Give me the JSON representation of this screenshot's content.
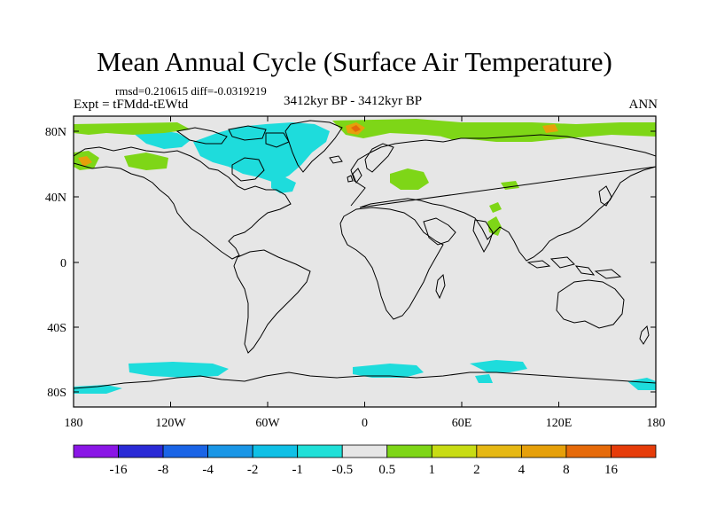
{
  "title": "Mean Annual Cycle (Surface Air Temperature)",
  "stats": {
    "rmsd_label": "rmsd=",
    "rmsd": "0.210615",
    "diff_label": "diff=",
    "diff": "-0.0319219"
  },
  "experiment": "Expt = tFMdd-tEWtd",
  "period": "3412kyr BP - 3412kyr BP",
  "season": "ANN",
  "lat_labels": [
    "80N",
    "40N",
    "0",
    "40S",
    "80S"
  ],
  "lon_labels": [
    "180",
    "120W",
    "60W",
    "0",
    "60E",
    "120E",
    "180"
  ],
  "colorbar": {
    "colors": [
      "#8a16e6",
      "#2a2ad6",
      "#1a64e6",
      "#1a96e6",
      "#10c0e6",
      "#20e0d8",
      "#e6e6e6",
      "#7ed617",
      "#c8dc14",
      "#e6b814",
      "#e6a00a",
      "#e66a0a",
      "#e63c0a"
    ],
    "labels": [
      "-16",
      "-8",
      "-4",
      "-2",
      "-1",
      "-0.5",
      "0.5",
      "1",
      "2",
      "4",
      "8",
      "16"
    ]
  },
  "map_colors": {
    "background": "#e6e6e6",
    "cool_light": "#1edcdc",
    "cool_mid": "#10c0e6",
    "warm_light": "#7ed617",
    "warm_mid": "#e6a00a",
    "warm_hot": "#e66a0a"
  }
}
